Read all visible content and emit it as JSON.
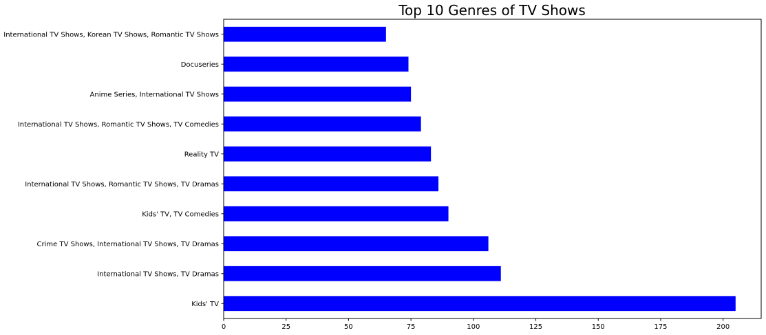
{
  "chart_data": {
    "type": "bar",
    "orientation": "horizontal",
    "title": "Top 10 Genres of TV Shows",
    "xlabel": "",
    "ylabel": "",
    "categories": [
      "International TV Shows, Korean TV Shows, Romantic TV Shows",
      "Docuseries",
      "Anime Series, International TV Shows",
      "International TV Shows, Romantic TV Shows, TV Comedies",
      "Reality TV",
      "International TV Shows, Romantic TV Shows, TV Dramas",
      "Kids' TV, TV Comedies",
      "Crime TV Shows, International TV Shows, TV Dramas",
      "International TV Shows, TV Dramas",
      "Kids' TV"
    ],
    "values": [
      65,
      74,
      75,
      79,
      83,
      86,
      90,
      106,
      111,
      205
    ],
    "xlim": [
      0,
      215.25
    ],
    "xticks": [
      0,
      25,
      50,
      75,
      100,
      125,
      150,
      175,
      200
    ],
    "grid": false,
    "legend": "none",
    "bar_color": "#0000ff"
  }
}
